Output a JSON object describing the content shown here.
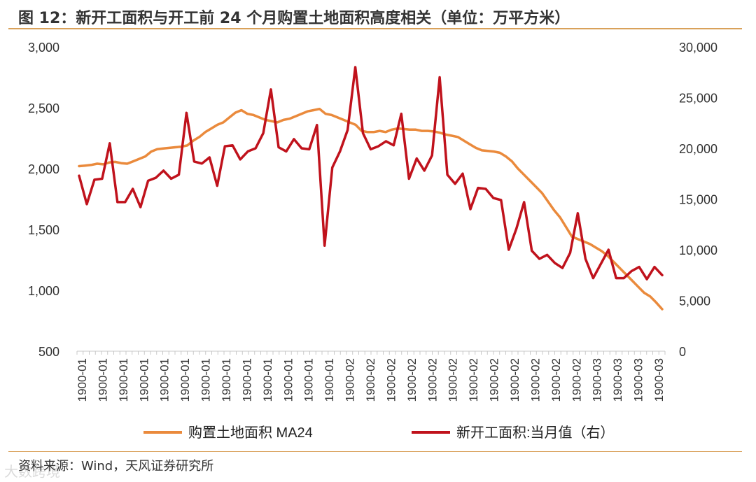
{
  "header": {
    "title": "图 12：新开工面积与开工前 24 个月购置土地面积高度相关（单位：万平方米）"
  },
  "footer": {
    "source": "资料来源：Wind，天风证券研究所",
    "watermark": "大数跨境"
  },
  "chart_data": {
    "type": "line",
    "title": "图 12：新开工面积与开工前 24 个月购置土地面积高度相关（单位：万平方米）",
    "x_tick_labels": [
      "1900-01",
      "1900-01",
      "1900-01",
      "1900-01",
      "1900-01",
      "1900-01",
      "1900-01",
      "1900-01",
      "1900-01",
      "1900-01",
      "1900-01",
      "1900-01",
      "1900-01",
      "1900-02",
      "1900-02",
      "1900-02",
      "1900-02",
      "1900-02",
      "1900-02",
      "1900-02",
      "1900-02",
      "1900-02",
      "1900-02",
      "1900-02",
      "1900-02",
      "1900-03",
      "1900-03",
      "1900-03",
      "1900-03"
    ],
    "y_left": {
      "ylim": [
        500,
        3000
      ],
      "ticks": [
        500,
        1000,
        1500,
        2000,
        2500,
        3000
      ],
      "tick_labels": [
        "500",
        "1,000",
        "1,500",
        "2,000",
        "2,500",
        "3,000"
      ]
    },
    "y_right": {
      "ylim": [
        0,
        30000
      ],
      "ticks": [
        0,
        5000,
        10000,
        15000,
        20000,
        25000,
        30000
      ],
      "tick_labels": [
        "0",
        "5,000",
        "10,000",
        "15,000",
        "20,000",
        "25,000",
        "30,000"
      ]
    },
    "legend_position": "bottom",
    "series": [
      {
        "name": "购置土地面积 MA24",
        "axis": "left",
        "color": "#ea8a3c",
        "values": [
          2020,
          2025,
          2030,
          2040,
          2035,
          2050,
          2055,
          2045,
          2040,
          2060,
          2080,
          2100,
          2140,
          2160,
          2165,
          2170,
          2175,
          2180,
          2190,
          2230,
          2260,
          2300,
          2330,
          2360,
          2380,
          2420,
          2460,
          2480,
          2450,
          2440,
          2420,
          2400,
          2390,
          2380,
          2400,
          2410,
          2430,
          2450,
          2470,
          2480,
          2490,
          2450,
          2440,
          2420,
          2400,
          2380,
          2360,
          2310,
          2300,
          2300,
          2310,
          2300,
          2320,
          2330,
          2325,
          2320,
          2320,
          2310,
          2310,
          2305,
          2295,
          2280,
          2270,
          2260,
          2230,
          2200,
          2170,
          2150,
          2145,
          2140,
          2130,
          2100,
          2060,
          2000,
          1950,
          1900,
          1850,
          1800,
          1730,
          1660,
          1600,
          1520,
          1440,
          1420,
          1400,
          1380,
          1350,
          1320,
          1280,
          1230,
          1180,
          1130,
          1080,
          1030,
          980,
          950,
          900,
          845
        ]
      },
      {
        "name": "新开工面积:当月值（右）",
        "axis": "right",
        "color": "#c0121c",
        "values": [
          17300,
          14500,
          16900,
          17000,
          20500,
          14700,
          14700,
          16000,
          14200,
          16800,
          17100,
          17800,
          17000,
          17400,
          23500,
          18700,
          18500,
          19100,
          16300,
          20200,
          20300,
          18900,
          19700,
          20000,
          21500,
          25800,
          20100,
          19700,
          20900,
          20000,
          19900,
          22300,
          10400,
          18100,
          19700,
          21800,
          28000,
          21500,
          19900,
          20200,
          20700,
          20300,
          23400,
          17000,
          19000,
          17800,
          19300,
          27000,
          17400,
          16500,
          17500,
          14000,
          16100,
          16000,
          15100,
          14900,
          10000,
          12100,
          14700,
          9900,
          9100,
          9500,
          8700,
          8200,
          9700,
          13600,
          9100,
          7200,
          8600,
          10000,
          7200,
          7200,
          7900,
          8300,
          7100,
          8300,
          7500
        ],
        "note": "values in 万平方米"
      }
    ],
    "grid": false
  }
}
